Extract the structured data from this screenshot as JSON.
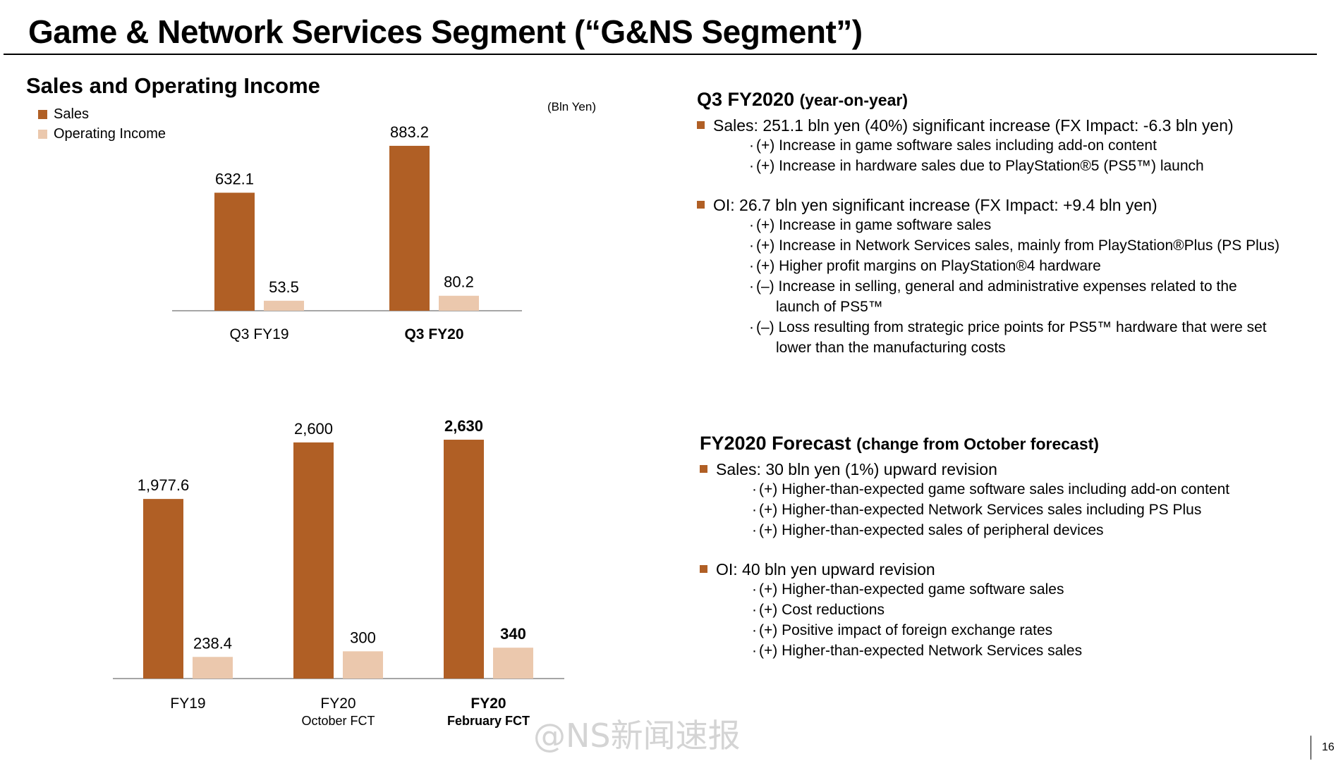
{
  "slide": {
    "title": "Game & Network Services Segment (“G&NS Segment”)",
    "page_number": "16",
    "watermark": "@NS新闻速报"
  },
  "left": {
    "heading": "Sales and Operating Income",
    "unit": "(Bln Yen)",
    "legend": [
      "Sales",
      "Operating Income"
    ]
  },
  "colors": {
    "sales": "#b05f25",
    "operating_income": "#ebc8ad",
    "bullet": "#b05f25",
    "axis": "#a6a6a6"
  },
  "chart_data": [
    {
      "type": "bar",
      "categories": [
        "Q3 FY19",
        "Q3 FY20"
      ],
      "category_bold": [
        false,
        true
      ],
      "series": [
        {
          "name": "Sales",
          "values": [
            632.1,
            883.2
          ],
          "labels": [
            "632.1",
            "883.2"
          ]
        },
        {
          "name": "Operating Income",
          "values": [
            53.5,
            80.2
          ],
          "labels": [
            "53.5",
            "80.2"
          ]
        }
      ],
      "title": "Sales and Operating Income",
      "ylabel": "(Bln Yen)",
      "ylim": [
        0,
        1000
      ],
      "legend": "top-left",
      "grid": false
    },
    {
      "type": "bar",
      "categories": [
        "FY19",
        "FY20",
        "FY20"
      ],
      "category_sublabels": [
        "",
        "October FCT",
        "February FCT"
      ],
      "category_bold": [
        false,
        false,
        true
      ],
      "series": [
        {
          "name": "Sales",
          "values": [
            1977.6,
            2600,
            2630
          ],
          "labels": [
            "1,977.6",
            "2,600",
            "2,630"
          ],
          "bold": [
            false,
            false,
            true
          ]
        },
        {
          "name": "Operating Income",
          "values": [
            238.4,
            300,
            340
          ],
          "labels": [
            "238.4",
            "300",
            "340"
          ],
          "bold": [
            false,
            false,
            true
          ]
        }
      ],
      "ylim": [
        0,
        2700
      ],
      "legend": "none",
      "grid": false
    }
  ],
  "q3": {
    "heading": "Q3 FY2020",
    "heading_sub": "(year-on-year)",
    "sales": {
      "text": "Sales: 251.1 bln yen (40%) significant increase (FX Impact: -6.3 bln yen)",
      "items": [
        "(+) Increase in game software sales including add-on content",
        "(+) Increase in hardware sales due to PlayStation®5 (PS5™) launch"
      ]
    },
    "oi": {
      "text": "OI: 26.7 bln yen significant increase (FX Impact: +9.4 bln yen)",
      "items": [
        "(+) Increase in game software sales",
        "(+) Increase in Network Services sales, mainly from PlayStation®Plus (PS Plus)",
        "(+) Higher profit margins on PlayStation®4 hardware",
        "(–) Increase in selling, general and administrative expenses related to the",
        "launch of PS5™",
        "(–) Loss resulting from strategic price points for PS5™ hardware that were set",
        "lower than the manufacturing costs"
      ]
    }
  },
  "forecast": {
    "heading": "FY2020 Forecast",
    "heading_sub": "(change from October forecast)",
    "sales": {
      "text": "Sales: 30 bln yen (1%) upward revision",
      "items": [
        "(+) Higher-than-expected game software sales including add-on content",
        "(+) Higher-than-expected Network Services sales including PS Plus",
        "(+) Higher-than-expected sales of peripheral devices"
      ]
    },
    "oi": {
      "text": "OI: 40 bln yen upward revision",
      "items": [
        "(+) Higher-than-expected game software sales",
        "(+) Cost reductions",
        "(+) Positive impact of foreign exchange rates",
        "(+) Higher-than-expected Network Services sales"
      ]
    }
  }
}
